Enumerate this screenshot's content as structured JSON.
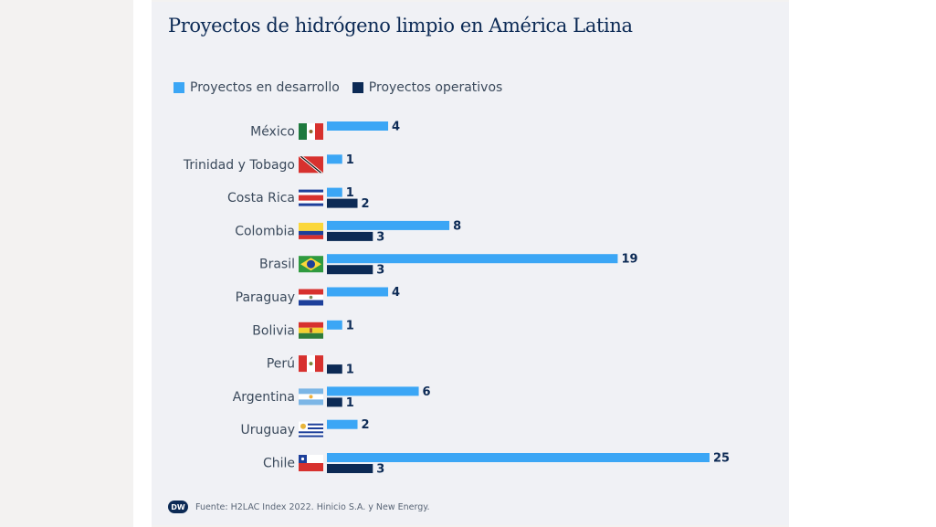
{
  "title": "Proyectos de hidrógeno limpio en América Latina",
  "footer": {
    "logo": "DW",
    "source": "Fuente: H2LAC Index 2022. Hinicio S.A. y New Energy."
  },
  "colors": {
    "desarrollo": "#3ba6f5",
    "operativos": "#0c2a55",
    "card": "#f0f1f5"
  },
  "chart_data": {
    "type": "bar",
    "orientation": "horizontal",
    "title": "Proyectos de hidrógeno limpio en América Latina",
    "xlabel": "",
    "ylabel": "",
    "legend_position": "top-left",
    "grid": false,
    "categories": [
      "México",
      "Trinidad y Tobago",
      "Costa Rica",
      "Colombia",
      "Brasil",
      "Paraguay",
      "Bolivia",
      "Perú",
      "Argentina",
      "Uruguay",
      "Chile"
    ],
    "series": [
      {
        "name": "Proyectos en desarrollo",
        "values": [
          4,
          1,
          1,
          8,
          19,
          4,
          1,
          null,
          6,
          2,
          25
        ]
      },
      {
        "name": "Proyectos operativos",
        "values": [
          null,
          null,
          2,
          3,
          3,
          null,
          null,
          1,
          1,
          null,
          3
        ]
      }
    ],
    "xlim": [
      0,
      25
    ]
  }
}
